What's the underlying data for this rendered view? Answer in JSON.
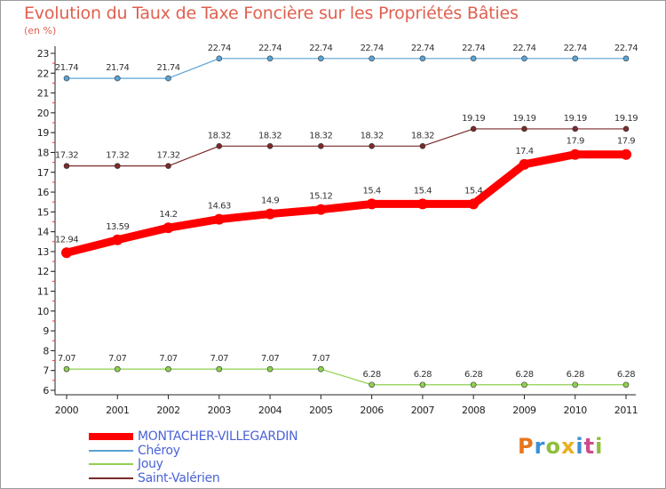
{
  "chart_data": {
    "type": "line",
    "title": "Evolution du Taux de Taxe Foncière sur les Propriétés Bâties",
    "unit_label": "(en %)",
    "xlabel": "",
    "ylabel": "(en %)",
    "categories": [
      "2000",
      "2001",
      "2002",
      "2003",
      "2004",
      "2005",
      "2006",
      "2007",
      "2008",
      "2009",
      "2010",
      "2011"
    ],
    "ylim": [
      6,
      23
    ],
    "yticks": [
      6,
      7,
      8,
      9,
      10,
      11,
      12,
      13,
      14,
      15,
      16,
      17,
      18,
      19,
      20,
      21,
      22,
      23
    ],
    "grid": false,
    "legend_position": "bottom-left",
    "series": [
      {
        "name": "Chéroy",
        "color": "#5ba3d6",
        "values": [
          21.74,
          21.74,
          21.74,
          22.74,
          22.74,
          22.74,
          22.74,
          22.74,
          22.74,
          22.74,
          22.74,
          22.74
        ],
        "labels": [
          "21.74",
          "21.74",
          "21.74",
          "22.74",
          "22.74",
          "22.74",
          "22.74",
          "22.74",
          "22.74",
          "22.74",
          "22.74",
          "22.74"
        ]
      },
      {
        "name": "Saint-Valérien",
        "color": "#7a2b2b",
        "values": [
          17.32,
          17.32,
          17.32,
          18.32,
          18.32,
          18.32,
          18.32,
          18.32,
          19.19,
          19.19,
          19.19,
          19.19
        ],
        "labels": [
          "17.32",
          "17.32",
          "17.32",
          "18.32",
          "18.32",
          "18.32",
          "18.32",
          "18.32",
          "19.19",
          "19.19",
          "19.19",
          "19.19"
        ]
      },
      {
        "name": "MONTACHER-VILLEGARDIN",
        "color": "#ff0000",
        "values": [
          12.94,
          13.59,
          14.2,
          14.63,
          14.9,
          15.12,
          15.4,
          15.4,
          15.4,
          17.4,
          17.9,
          17.9
        ],
        "labels": [
          "12.94",
          "13.59",
          "14.2",
          "14.63",
          "14.9",
          "15.12",
          "15.4",
          "15.4",
          "15.4",
          "17.4",
          "17.9",
          "17.9"
        ]
      },
      {
        "name": "Jouy",
        "color": "#8fd14f",
        "values": [
          7.07,
          7.07,
          7.07,
          7.07,
          7.07,
          7.07,
          6.28,
          6.28,
          6.28,
          6.28,
          6.28,
          6.28
        ],
        "labels": [
          "7.07",
          "7.07",
          "7.07",
          "7.07",
          "7.07",
          "7.07",
          "6.28",
          "6.28",
          "6.28",
          "6.28",
          "6.28",
          "6.28"
        ]
      }
    ]
  },
  "legend": {
    "items": [
      {
        "label": "MONTACHER-VILLEGARDIN",
        "color": "#ff0000",
        "thick": true
      },
      {
        "label": "Chéroy",
        "color": "#5ba3d6",
        "thick": false
      },
      {
        "label": "Jouy",
        "color": "#8fd14f",
        "thick": false
      },
      {
        "label": "Saint-Valérien",
        "color": "#7a2b2b",
        "thick": false
      }
    ]
  },
  "logo": {
    "text": "Proxiti",
    "colors": [
      "#e8761e",
      "#3a8fd6",
      "#8fbf3a",
      "#e8b020",
      "#3a8fd6",
      "#d04a8a",
      "#8fbf3a"
    ]
  }
}
